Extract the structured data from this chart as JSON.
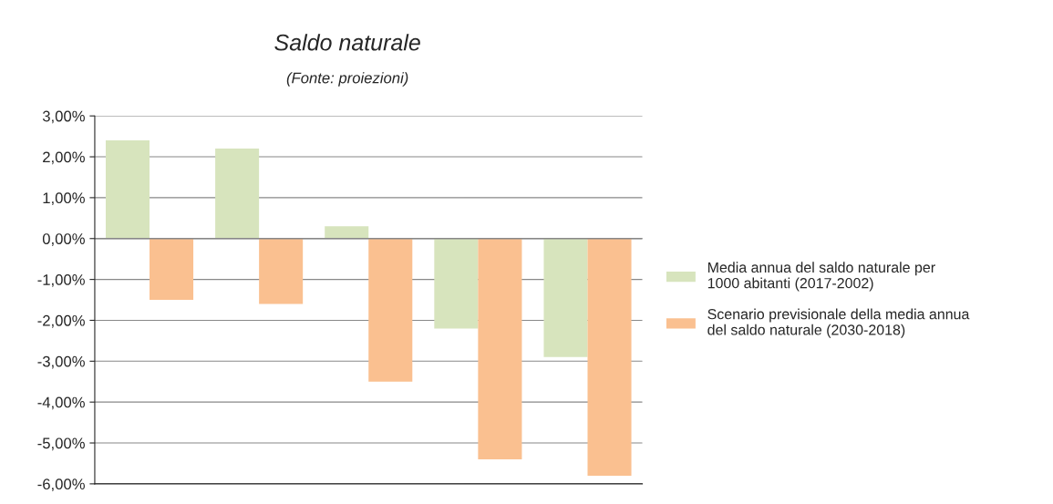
{
  "chart_data": {
    "type": "bar",
    "title": "Saldo naturale",
    "subtitle": "(Fonte: proiezioni)",
    "categories": [
      null,
      null,
      null,
      null,
      null
    ],
    "series": [
      {
        "name": "Media annua del saldo naturale per 1000 abitanti (2017-2002)",
        "color": "#d7e4bd",
        "values": [
          2.4,
          2.2,
          0.3,
          -2.2,
          -2.9
        ]
      },
      {
        "name": "Scenario previsionale della media annua del saldo naturale (2030-2018)",
        "color": "#fac090",
        "values": [
          -1.5,
          -1.6,
          -3.5,
          -5.4,
          -5.8
        ]
      }
    ],
    "ylim": [
      -6,
      3
    ],
    "yticks": [
      {
        "value": -6,
        "label": "-6,00%"
      },
      {
        "value": -5,
        "label": "-5,00%"
      },
      {
        "value": -4,
        "label": "-4,00%"
      },
      {
        "value": -3,
        "label": "-3,00%"
      },
      {
        "value": -2,
        "label": "-2,00%"
      },
      {
        "value": -1,
        "label": "-1,00%"
      },
      {
        "value": 0,
        "label": "0,00%"
      },
      {
        "value": 1,
        "label": "1,00%"
      },
      {
        "value": 2,
        "label": "2,00%"
      },
      {
        "value": 3,
        "label": "3,00%"
      }
    ],
    "grid": "y",
    "legend": "right"
  }
}
